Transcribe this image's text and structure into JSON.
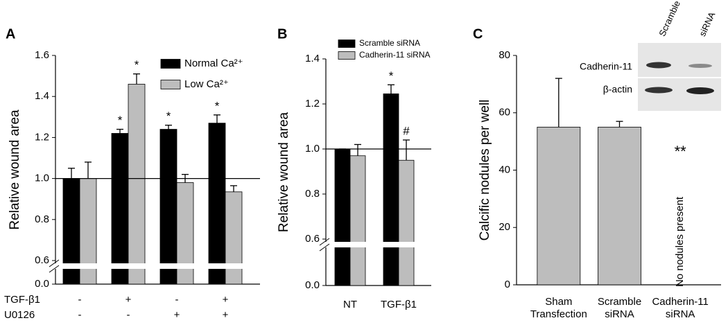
{
  "chart_data": [
    {
      "type": "bar",
      "panel": "A",
      "ylabel": "Relative wound area",
      "ylim": [
        0,
        1.6
      ],
      "yticks": [
        {
          "value": 0,
          "label": "0.0"
        },
        0.6,
        0.8,
        {
          "value": 1,
          "label": "1.0"
        },
        1.2,
        1.4,
        1.6
      ],
      "axis_break": true,
      "hline": 1,
      "conditions": [
        {
          "name": "TGF-β1",
          "values": [
            "-",
            "+",
            "-",
            "+"
          ]
        },
        {
          "name": "U0126",
          "values": [
            "-",
            "-",
            "+",
            "+"
          ]
        }
      ],
      "series": [
        {
          "name": "Normal Ca²⁺",
          "color": "#000000",
          "values": [
            1.0,
            1.22,
            1.24,
            1.27
          ],
          "errors": [
            0.05,
            0.02,
            0.02,
            0.04
          ],
          "marks": [
            null,
            "*",
            "*",
            "*"
          ]
        },
        {
          "name": "Low Ca²⁺",
          "color": "#bdbdbd",
          "values": [
            1.0,
            1.46,
            0.98,
            0.935
          ],
          "errors": [
            0.08,
            0.05,
            0.04,
            0.03
          ],
          "marks": [
            null,
            "*",
            null,
            null
          ]
        }
      ]
    },
    {
      "type": "bar",
      "panel": "B",
      "ylabel": "Relative wound area",
      "ylim": [
        0,
        1.4
      ],
      "yticks": [
        {
          "value": 0,
          "label": "0.0"
        },
        0.6,
        0.8,
        {
          "value": 1,
          "label": "1.0"
        },
        1.2,
        1.4
      ],
      "axis_break": true,
      "hline": 1,
      "categories": [
        "NT",
        "TGF-β1"
      ],
      "series": [
        {
          "name": "Scramble siRNA",
          "color": "#000000",
          "values": [
            1.0,
            1.245
          ],
          "errors": [
            0,
            0.04
          ],
          "marks": [
            null,
            "*"
          ]
        },
        {
          "name": "Cadherin-11 siRNA",
          "color": "#bdbdbd",
          "values": [
            0.97,
            0.95
          ],
          "errors": [
            0.05,
            0.09
          ],
          "marks": [
            null,
            "#"
          ]
        }
      ]
    },
    {
      "type": "bar",
      "panel": "C",
      "ylabel": "Calcific nodules per well",
      "ylim": [
        0,
        80
      ],
      "yticks": [
        0,
        20,
        40,
        60,
        80
      ],
      "axis_break": false,
      "categories": [
        [
          "Sham",
          "Transfection"
        ],
        [
          "Scramble",
          "siRNA"
        ],
        [
          "Cadherin-11",
          "siRNA"
        ]
      ],
      "series": [
        {
          "color": "#bdbdbd",
          "values": [
            55,
            55,
            0
          ],
          "errors": [
            17,
            2,
            null
          ],
          "marks": [
            null,
            null,
            "**"
          ]
        }
      ],
      "note": "No nodules present",
      "inset": {
        "lanes": [
          "Scramble",
          "siRNA"
        ],
        "rows": [
          "Cadherin-11",
          "β-actin"
        ]
      }
    }
  ]
}
